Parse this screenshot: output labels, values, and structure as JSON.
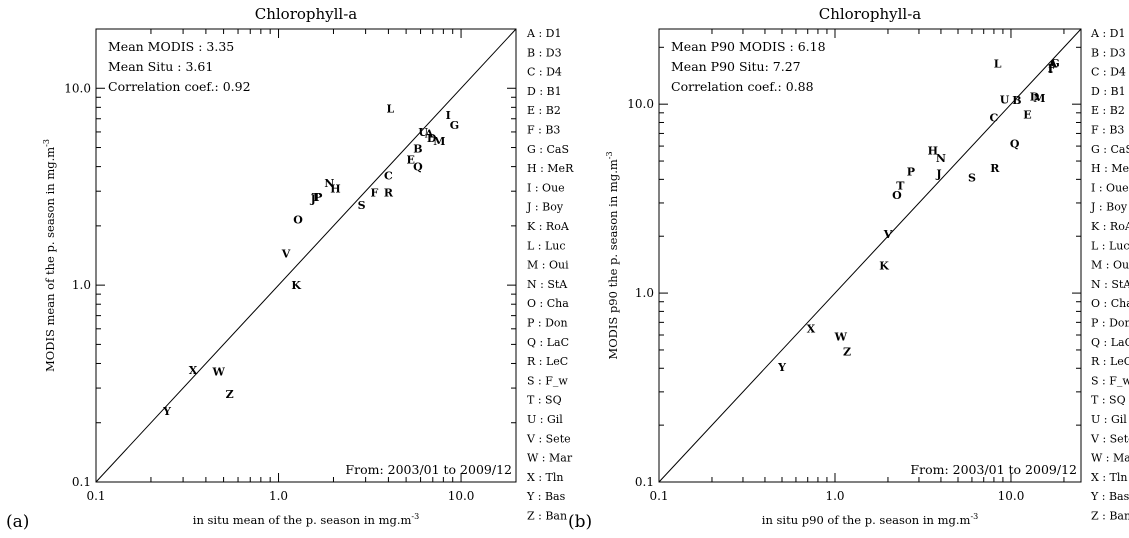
{
  "chart_data": [
    {
      "type": "scatter",
      "panel_label": "(a)",
      "title": "Chlorophyll-a",
      "xlabel": "in situ mean of the p. season in",
      "ylabel": "MODIS mean of the p. season in",
      "unit": "mg.m",
      "unit_sup": "-3",
      "xscale": "log",
      "yscale": "log",
      "xlim": [
        0.1,
        20
      ],
      "ylim": [
        0.1,
        20
      ],
      "xticks": [
        "0.1",
        "1.0",
        "10.0"
      ],
      "yticks": [
        "0.1",
        "1.0",
        "10.0"
      ],
      "identity_line": true,
      "stats": [
        "Mean MODIS : 3.35",
        "Mean Situ : 3.61",
        "Correlation coef.: 0.92"
      ],
      "period": "From: 2003/01 to 2009/12",
      "points": [
        {
          "label": "A",
          "x": 6.7,
          "y": 5.9
        },
        {
          "label": "B",
          "x": 5.8,
          "y": 4.95
        },
        {
          "label": "C",
          "x": 4.0,
          "y": 3.6
        },
        {
          "label": "D",
          "x": 6.9,
          "y": 5.6
        },
        {
          "label": "E",
          "x": 5.3,
          "y": 4.35
        },
        {
          "label": "F",
          "x": 3.35,
          "y": 2.95
        },
        {
          "label": "G",
          "x": 9.2,
          "y": 6.5
        },
        {
          "label": "H",
          "x": 2.05,
          "y": 3.1
        },
        {
          "label": "I",
          "x": 8.5,
          "y": 7.3
        },
        {
          "label": "J",
          "x": 1.55,
          "y": 2.75
        },
        {
          "label": "K",
          "x": 1.25,
          "y": 1.0
        },
        {
          "label": "L",
          "x": 4.1,
          "y": 7.9
        },
        {
          "label": "M",
          "x": 7.6,
          "y": 5.4
        },
        {
          "label": "N",
          "x": 1.9,
          "y": 3.3
        },
        {
          "label": "O",
          "x": 1.28,
          "y": 2.15
        },
        {
          "label": "P",
          "x": 1.65,
          "y": 2.8
        },
        {
          "label": "Q",
          "x": 5.8,
          "y": 4.0
        },
        {
          "label": "R",
          "x": 4.0,
          "y": 2.95
        },
        {
          "label": "S",
          "x": 2.85,
          "y": 2.55
        },
        {
          "label": "T",
          "x": 1.6,
          "y": 2.8
        },
        {
          "label": "U",
          "x": 6.2,
          "y": 6.0
        },
        {
          "label": "V",
          "x": 1.1,
          "y": 1.45
        },
        {
          "label": "W",
          "x": 0.47,
          "y": 0.365
        },
        {
          "label": "X",
          "x": 0.34,
          "y": 0.37
        },
        {
          "label": "Y",
          "x": 0.245,
          "y": 0.23
        },
        {
          "label": "Z",
          "x": 0.54,
          "y": 0.28
        }
      ]
    },
    {
      "type": "scatter",
      "panel_label": "(b)",
      "title": "Chlorophyll-a",
      "xlabel": "in situ p90 of the p. season in",
      "ylabel": "MODIS p90 the p. season in",
      "unit": "mg.m",
      "unit_sup": "-3",
      "xscale": "log",
      "yscale": "log",
      "xlim": [
        0.1,
        25
      ],
      "ylim": [
        0.1,
        25
      ],
      "xticks": [
        "0.1",
        "1.0",
        "10.0"
      ],
      "yticks": [
        "0.1",
        "1.0",
        "10.0"
      ],
      "identity_line": true,
      "stats": [
        "Mean P90 MODIS : 6.18",
        "Mean P90 Situ: 7.27",
        "Correlation coef.: 0.88"
      ],
      "period": "From: 2003/01 to 2009/12",
      "points": [
        {
          "label": "A",
          "x": 17.3,
          "y": 16.4
        },
        {
          "label": "B",
          "x": 10.8,
          "y": 10.5
        },
        {
          "label": "C",
          "x": 8.0,
          "y": 8.5
        },
        {
          "label": "D",
          "x": 13.6,
          "y": 11.0
        },
        {
          "label": "E",
          "x": 12.4,
          "y": 8.8
        },
        {
          "label": "F",
          "x": 17.0,
          "y": 15.5
        },
        {
          "label": "G",
          "x": 17.8,
          "y": 16.5
        },
        {
          "label": "H",
          "x": 3.6,
          "y": 5.7
        },
        {
          "label": "I",
          "x": 16.8,
          "y": 15.4
        },
        {
          "label": "J",
          "x": 3.9,
          "y": 4.3
        },
        {
          "label": "K",
          "x": 1.9,
          "y": 1.4
        },
        {
          "label": "L",
          "x": 8.4,
          "y": 16.4
        },
        {
          "label": "M",
          "x": 14.5,
          "y": 10.8
        },
        {
          "label": "N",
          "x": 4.0,
          "y": 5.2
        },
        {
          "label": "O",
          "x": 2.25,
          "y": 3.3
        },
        {
          "label": "P",
          "x": 2.7,
          "y": 4.4
        },
        {
          "label": "Q",
          "x": 10.5,
          "y": 6.2
        },
        {
          "label": "R",
          "x": 8.1,
          "y": 4.6
        },
        {
          "label": "S",
          "x": 6.0,
          "y": 4.1
        },
        {
          "label": "T",
          "x": 2.35,
          "y": 3.7
        },
        {
          "label": "U",
          "x": 9.2,
          "y": 10.6
        },
        {
          "label": "V",
          "x": 2.0,
          "y": 2.05
        },
        {
          "label": "W",
          "x": 1.08,
          "y": 0.59
        },
        {
          "label": "X",
          "x": 0.73,
          "y": 0.65
        },
        {
          "label": "Y",
          "x": 0.5,
          "y": 0.405
        },
        {
          "label": "Z",
          "x": 1.17,
          "y": 0.49
        }
      ]
    }
  ],
  "legend_items": [
    "A : D1",
    "B : D3",
    "C : D4",
    "D : B1",
    "E : B2",
    "F : B3",
    "G : CaS",
    "H : MeR",
    "I : Oue",
    "J : Boy",
    "K : RoA",
    "L : Luc",
    "M : Oui",
    "N : StA",
    "O : Cha",
    "P : Don",
    "Q : LaC",
    "R : LeC",
    "S : F_w",
    "T : SQ",
    "U : Gil",
    "V : Sete",
    "W : Mar",
    "X : Tln",
    "Y : Bas",
    "Z : Ban"
  ]
}
